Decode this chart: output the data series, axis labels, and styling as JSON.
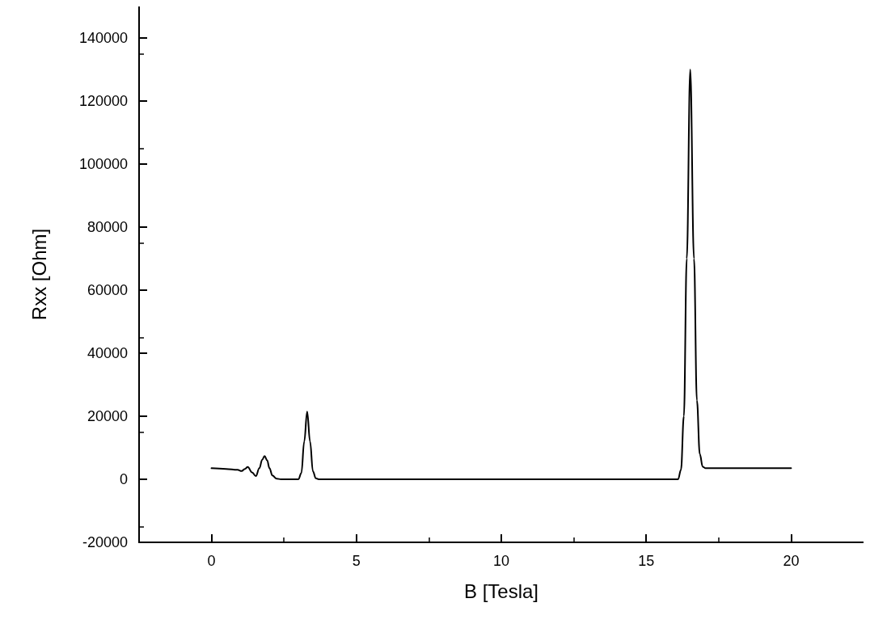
{
  "chart_data": {
    "type": "line",
    "xlabel": "B [Tesla]",
    "ylabel": "Rxx [Ohm]",
    "xlim": [
      -2.5,
      22.5
    ],
    "ylim": [
      -20000,
      150000
    ],
    "xticks": [
      0,
      5,
      10,
      15,
      20
    ],
    "yticks": [
      -20000,
      0,
      20000,
      40000,
      60000,
      80000,
      100000,
      120000,
      140000
    ],
    "grid": false,
    "marker": "none",
    "line_style": "solid",
    "series": [
      {
        "color": "#000000",
        "x": [
          0,
          0.5,
          0.9,
          1.04,
          1.15,
          1.25,
          1.4,
          1.53,
          1.65,
          1.75,
          1.83,
          1.92,
          2.0,
          2.1,
          2.25,
          2.4,
          3.0,
          3.1,
          3.2,
          3.3,
          3.4,
          3.5,
          3.6,
          3.7,
          16.1,
          16.2,
          16.3,
          16.4,
          16.52,
          16.65,
          16.75,
          16.85,
          16.95,
          17.05,
          20
        ],
        "values": [
          3500,
          3300,
          3000,
          2600,
          3300,
          3900,
          2200,
          1000,
          3500,
          6200,
          7400,
          6000,
          3500,
          1200,
          200,
          0,
          0,
          2000,
          12000,
          21500,
          12000,
          2500,
          300,
          0,
          0,
          3000,
          20000,
          70000,
          130000,
          70000,
          25000,
          8000,
          4000,
          3500,
          3500
        ]
      }
    ]
  }
}
